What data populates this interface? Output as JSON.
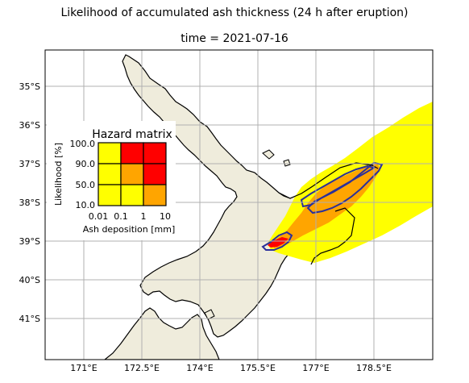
{
  "title": "Likelihood of accumulated ash thickness (24 h after eruption)",
  "subtitle": "time = 2021-07-16",
  "map": {
    "lat_ticks": [
      "35°S",
      "36°S",
      "37°S",
      "38°S",
      "39°S",
      "40°S",
      "41°S"
    ],
    "lon_ticks": [
      "171°E",
      "172.5°E",
      "174°E",
      "175.5°E",
      "177°E",
      "178.5°E"
    ],
    "land_color": "#efecdc",
    "coast_color": "#000000",
    "grid_color": "#b0b0b0",
    "contour_color": "#2b2f9b",
    "ash_colors": {
      "low": "#ffff00",
      "medium": "#ffa500",
      "high": "#ff0000"
    }
  },
  "hazard_matrix": {
    "title": "Hazard matrix",
    "ylabel": "Likelihood [%]",
    "xlabel": "Ash deposition [mm]",
    "y_ticks": [
      "100.0",
      "90.0",
      "50.0",
      "10.0"
    ],
    "x_ticks": [
      "0.01",
      "0.1",
      "1",
      "10"
    ],
    "rows": [
      [
        "#ffff00",
        "#ff0000",
        "#ff0000"
      ],
      [
        "#ffff00",
        "#ffa500",
        "#ff0000"
      ],
      [
        "#ffff00",
        "#ffff00",
        "#ffa500"
      ]
    ]
  }
}
